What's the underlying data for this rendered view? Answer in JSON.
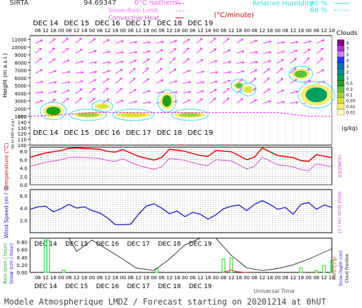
{
  "header": {
    "station": "SIRTA",
    "code": "94.69347",
    "legend_isotherm": "0°C isotherm",
    "legend_snow": "Snow-Rain Limit",
    "legend_convective": "Convective Heat.",
    "legend_convective_unit": "(°C/minute)",
    "legend_rh": "Relative Humidity",
    "rh_levels": [
      "90 %",
      "60 %"
    ]
  },
  "footer": {
    "title": "Modele Atmospherique LMDZ / Forecast starting on 20201214 at 0hUT",
    "x_axis_label": "Universal Time"
  },
  "colors": {
    "isotherm": "#ff00ff",
    "snow_rain": "#ff55ff",
    "convective": "#cc0000",
    "humidity": "#33dddd",
    "temperature": "#dd1111",
    "humidex": "#cc55cc",
    "wind_speed": "#2222cc",
    "cloud_fraction": "#000000",
    "rain": "#22cc22",
    "cape": "#ee2222",
    "wind_arrows": "#ff33ff"
  },
  "chart_data": [
    {
      "type": "heatmap",
      "panel": "clouds",
      "ylabel": "Height (m a.s.l.)",
      "ylabel_low": "Up to 200 m a.g.l.",
      "y_ticks": [
        11000,
        10000,
        9000,
        8000,
        7000,
        6000,
        5000,
        4000,
        3000,
        2000,
        1000,
        150,
        140,
        130,
        120,
        110,
        100
      ],
      "x_day_labels": [
        "DEC 14",
        "DEC 15",
        "DEC 16",
        "DEC 17",
        "DEC 18",
        "DEC 19"
      ],
      "x_hour_labels": [
        "06",
        "12",
        "18",
        "00"
      ],
      "colorbar": {
        "title": "Clouds",
        "unit": "(g/kg)",
        "levels": [
          "9",
          "7",
          "5",
          "4",
          "3",
          "2",
          "1",
          "0.5",
          "0.2",
          "0.1",
          "0.05",
          "0.02",
          "0.01"
        ],
        "colors": [
          "#8b008b",
          "#b030d8",
          "#d080f0",
          "#2040ff",
          "#0070c0",
          "#0090a0",
          "#00a060",
          "#20a020",
          "#60c040",
          "#a0d040",
          "#d8e040",
          "#f8f070",
          "#ffffc0"
        ]
      },
      "cloud_blobs": [
        {
          "t": 18,
          "z": 1700,
          "dt": 8,
          "dz": 1200,
          "level": 0.5
        },
        {
          "t": 45,
          "z": 1200,
          "dt": 12,
          "dz": 400,
          "level": 0.1
        },
        {
          "t": 56,
          "z": 2300,
          "dt": 6,
          "dz": 400,
          "level": 0.05
        },
        {
          "t": 80,
          "z": 1200,
          "dt": 14,
          "dz": 400,
          "level": 0.05
        },
        {
          "t": 106,
          "z": 3000,
          "dt": 5,
          "dz": 1800,
          "level": 0.5
        },
        {
          "t": 124,
          "z": 1200,
          "dt": 12,
          "dz": 400,
          "level": 0.1
        },
        {
          "t": 162,
          "z": 5000,
          "dt": 4,
          "dz": 600,
          "level": 0.2
        },
        {
          "t": 169,
          "z": 4500,
          "dt": 4,
          "dz": 600,
          "level": 0.05
        },
        {
          "t": 210,
          "z": 6500,
          "dt": 7,
          "dz": 1000,
          "level": 0.2
        },
        {
          "t": 222,
          "z": 3800,
          "dt": 12,
          "dz": 2400,
          "level": 1
        }
      ],
      "isotherm_0c": {
        "x": [
          0,
          24,
          48,
          72,
          96,
          120,
          144,
          168,
          192,
          216,
          234
        ],
        "y": [
          150,
          1200,
          1500,
          1500,
          1500,
          1500,
          1500,
          1500,
          1500,
          1000,
          1000
        ]
      }
    },
    {
      "type": "line",
      "panel": "temperature",
      "ylabel": "Temperature (°C)",
      "ylabel_right": "HUMIDEX",
      "y_ticks": [
        "8.0",
        "6.0",
        "4.0",
        "2.0",
        "0.0"
      ],
      "ylim": [
        0,
        9
      ],
      "series": [
        {
          "name": "Temperature",
          "x": [
            0,
            12,
            24,
            30,
            36,
            48,
            54,
            60,
            66,
            72,
            84,
            96,
            102,
            108,
            114,
            120,
            132,
            138,
            144,
            156,
            168,
            174,
            180,
            192,
            204,
            210,
            216,
            222,
            234
          ],
          "y": [
            6.6,
            7.6,
            8.2,
            8.7,
            8.8,
            8.6,
            8.5,
            8.0,
            7.8,
            8.4,
            6.8,
            5.9,
            6.5,
            8.5,
            8.3,
            8.0,
            7.0,
            6.8,
            8.2,
            7.9,
            6.0,
            6.6,
            8.8,
            7.0,
            6.5,
            5.8,
            5.6,
            7.2,
            6.5
          ]
        },
        {
          "name": "HUMIDEX",
          "x": [
            0,
            12,
            24,
            30,
            36,
            48,
            54,
            60,
            66,
            72,
            84,
            96,
            102,
            108,
            114,
            120,
            132,
            138,
            144,
            156,
            168,
            174,
            180,
            192,
            204,
            210,
            216,
            222,
            234
          ],
          "y": [
            4.4,
            5.4,
            6.0,
            6.5,
            6.6,
            6.4,
            6.3,
            5.8,
            5.6,
            6.2,
            4.6,
            3.7,
            4.3,
            6.3,
            6.1,
            5.8,
            4.8,
            4.6,
            6.0,
            5.7,
            3.8,
            4.4,
            6.6,
            4.8,
            4.3,
            3.6,
            3.4,
            5.0,
            4.3
          ]
        }
      ]
    },
    {
      "type": "line",
      "panel": "wind",
      "ylabel": "Wind Speed (m / s)",
      "ylabel_right": "Wind Gust (m / s)",
      "y_ticks": [
        "6.0",
        "4.0",
        "2.0"
      ],
      "ylim": [
        0,
        7
      ],
      "series": [
        {
          "name": "Wind Speed",
          "x": [
            0,
            6,
            12,
            18,
            24,
            30,
            36,
            42,
            48,
            54,
            60,
            66,
            72,
            78,
            84,
            90,
            96,
            102,
            108,
            114,
            120,
            126,
            132,
            138,
            144,
            150,
            156,
            162,
            168,
            174,
            180,
            186,
            192,
            198,
            204,
            210,
            216,
            222,
            228,
            234
          ],
          "y": [
            3.8,
            4.2,
            4.3,
            3.4,
            3.9,
            4.6,
            4.0,
            4.2,
            3.6,
            3.2,
            2.4,
            1.3,
            1.3,
            1.4,
            3.0,
            4.3,
            4.7,
            4.0,
            3.1,
            3.5,
            2.6,
            3.3,
            3.0,
            2.2,
            2.9,
            3.9,
            4.3,
            4.5,
            3.6,
            4.6,
            5.2,
            4.6,
            3.8,
            4.1,
            3.0,
            4.6,
            4.9,
            3.8,
            4.5,
            4.1
          ]
        }
      ]
    },
    {
      "type": "bar",
      "panel": "precipitation",
      "ylabel_left": [
        "Rain (mm / hour)",
        "Snow (cm / hour)"
      ],
      "ylabel_right": [
        "CAPE (J / g)",
        "Snow Depth (cm)",
        "Cloud Fraction"
      ],
      "y_ticks": [
        "0.00",
        "0.20",
        "0.40",
        "0.60",
        "0.80"
      ],
      "ylim": [
        0,
        0.9
      ],
      "rain_bars": {
        "x": [
          12,
          14,
          26,
          98,
          150,
          156,
          210,
          222,
          228,
          234
        ],
        "y": [
          0.85,
          0.85,
          0.06,
          0.1,
          0.35,
          0.38,
          0.12,
          0.05,
          0.18,
          0.32
        ]
      },
      "cloud_fraction": {
        "x": [
          30,
          36,
          48,
          60,
          72,
          82,
          96,
          108,
          120,
          132,
          144,
          156,
          168,
          180,
          192,
          204,
          216,
          234
        ],
        "y": [
          0.9,
          0.55,
          0.85,
          0.6,
          0.35,
          0.12,
          0.05,
          0.35,
          0.72,
          0.9,
          0.9,
          0.45,
          0.12,
          0.05,
          0.1,
          0.2,
          0.35,
          0.62
        ]
      },
      "cape": {
        "x": [
          150,
          156,
          160,
          168
        ],
        "y": [
          0.01,
          0.06,
          0.02,
          0.0
        ]
      }
    }
  ]
}
